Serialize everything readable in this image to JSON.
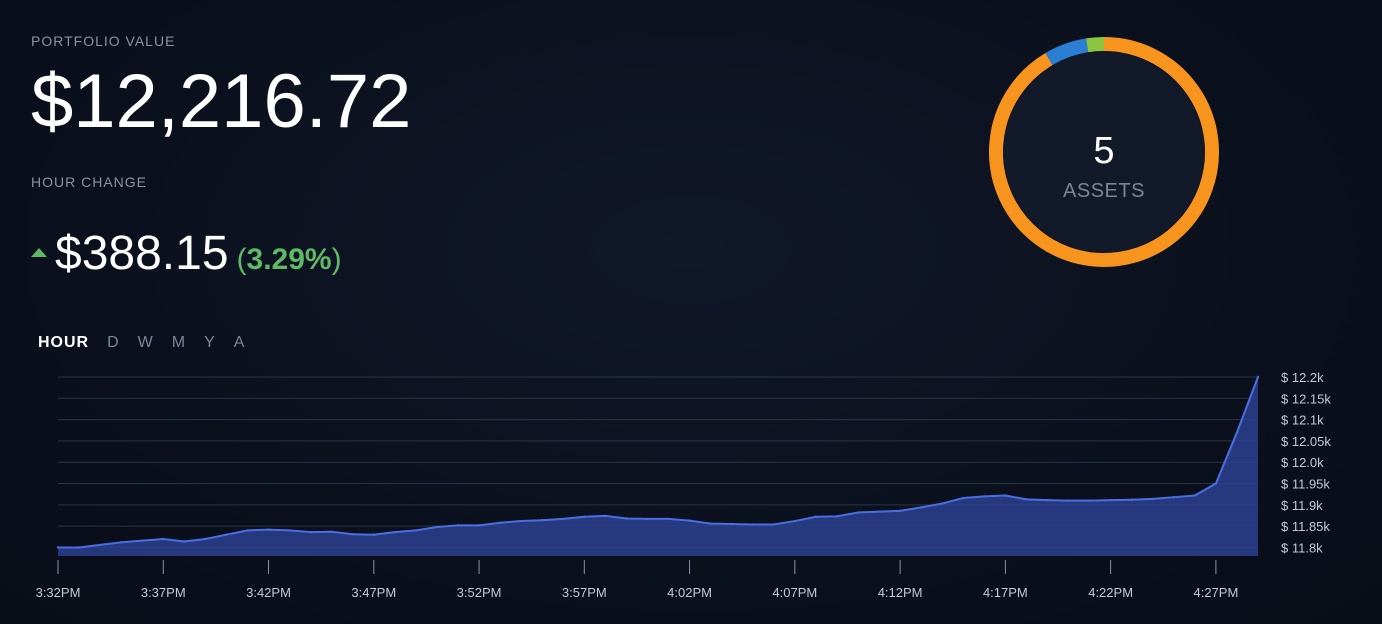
{
  "header": {
    "portfolio_label": "PORTFOLIO VALUE",
    "portfolio_value": "$12,216.72",
    "hour_change_label": "HOUR CHANGE",
    "change_amount": "$388.15",
    "change_pct_open": "(",
    "change_pct_value": "3.29%",
    "change_pct_close": ")",
    "change_icon": "triangle-up-icon"
  },
  "range_tabs": [
    {
      "label": "HOUR",
      "active": true
    },
    {
      "label": "D",
      "active": false
    },
    {
      "label": "W",
      "active": false
    },
    {
      "label": "M",
      "active": false
    },
    {
      "label": "Y",
      "active": false
    },
    {
      "label": "A",
      "active": false
    }
  ],
  "allocation": {
    "count": "5",
    "label": "ASSETS",
    "segments": [
      {
        "value": 0.915,
        "color": "#f7941d"
      },
      {
        "value": 0.06,
        "color": "#2a7fd4"
      },
      {
        "value": 0.025,
        "color": "#8cc63f"
      }
    ]
  },
  "colors": {
    "accent_up": "#5fb865",
    "area_fill": "#2b3f8f",
    "line": "#4a6fe3",
    "grid": "#2b3446"
  },
  "chart_data": {
    "type": "area",
    "title": "",
    "xlabel": "",
    "ylabel": "",
    "ylim": [
      11.78,
      12.2
    ],
    "yticks": [
      12.2,
      12.15,
      12.1,
      12.05,
      12.0,
      11.95,
      11.9,
      11.85,
      11.8
    ],
    "ytick_labels": [
      "$ 12.2k",
      "$ 12.15k",
      "$ 12.1k",
      "$ 12.05k",
      "$ 12.0k",
      "$ 11.95k",
      "$ 11.9k",
      "$ 11.85k",
      "$ 11.8k"
    ],
    "xtick_labels": [
      "3:32PM",
      "3:37PM",
      "3:42PM",
      "3:47PM",
      "3:52PM",
      "3:57PM",
      "4:02PM",
      "4:07PM",
      "4:12PM",
      "4:17PM",
      "4:22PM",
      "4:27PM"
    ],
    "x_minutes": [
      0,
      1,
      2,
      3,
      4,
      5,
      6,
      7,
      8,
      9,
      10,
      11,
      12,
      13,
      14,
      15,
      16,
      17,
      18,
      19,
      20,
      21,
      22,
      23,
      24,
      25,
      26,
      27,
      28,
      29,
      30,
      31,
      32,
      33,
      34,
      35,
      36,
      37,
      38,
      39,
      40,
      41,
      42,
      43,
      44,
      45,
      46,
      47,
      48,
      49,
      50,
      51,
      52,
      53,
      54,
      55,
      56,
      57
    ],
    "values": [
      11.8,
      11.8,
      11.806,
      11.812,
      11.816,
      11.82,
      11.814,
      11.82,
      11.83,
      11.84,
      11.842,
      11.84,
      11.836,
      11.837,
      11.831,
      11.83,
      11.836,
      11.84,
      11.848,
      11.852,
      11.852,
      11.858,
      11.862,
      11.864,
      11.867,
      11.872,
      11.874,
      11.868,
      11.867,
      11.867,
      11.863,
      11.856,
      11.855,
      11.854,
      11.854,
      11.862,
      11.872,
      11.873,
      11.882,
      11.884,
      11.886,
      11.894,
      11.903,
      11.916,
      11.92,
      11.922,
      11.913,
      11.911,
      11.91,
      11.91,
      11.911,
      11.912,
      11.914,
      11.918,
      11.922,
      11.95,
      12.07,
      12.2
    ]
  }
}
